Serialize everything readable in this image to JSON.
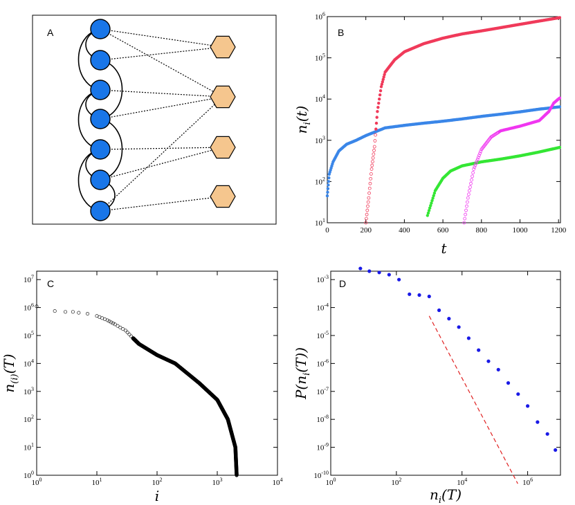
{
  "panels": {
    "A": {
      "label": "A",
      "colors": {
        "circle": "#1976e8",
        "hexagon": "#f5c68e"
      },
      "circles": 7,
      "hexagons": 4,
      "circle_links": [
        [
          0,
          1
        ],
        [
          0,
          2
        ],
        [
          1,
          3
        ],
        [
          2,
          3
        ],
        [
          2,
          4
        ],
        [
          3,
          5
        ],
        [
          4,
          6
        ],
        [
          4,
          5
        ],
        [
          5,
          6
        ]
      ],
      "bipartite_links": [
        [
          0,
          0
        ],
        [
          0,
          1
        ],
        [
          1,
          0
        ],
        [
          2,
          1
        ],
        [
          3,
          1
        ],
        [
          4,
          2
        ],
        [
          5,
          2
        ],
        [
          6,
          1
        ],
        [
          6,
          3
        ]
      ]
    },
    "B": {
      "label": "B",
      "xlabel": "t",
      "ylabel": "n_i(t)",
      "xticks": [
        "0",
        "200",
        "400",
        "600",
        "800",
        "1000",
        "1200"
      ],
      "ytick_exponents": [
        "1",
        "2",
        "3",
        "4",
        "5",
        "6"
      ]
    },
    "C": {
      "label": "C",
      "xlabel": "i",
      "ylabel": "n_(i)(T)",
      "xtick_exponents": [
        "0",
        "1",
        "2",
        "3",
        "4"
      ],
      "ytick_exponents": [
        "0",
        "1",
        "2",
        "3",
        "4",
        "5",
        "6",
        "7"
      ]
    },
    "D": {
      "label": "D",
      "xlabel": "n_i(T)",
      "ylabel": "P(n_i(T))",
      "xtick_exponents": [
        "0",
        "2",
        "4",
        "6"
      ],
      "ytick_exponents": [
        "-10",
        "-9",
        "-8",
        "-7",
        "-6",
        "-5",
        "-4",
        "-3"
      ]
    }
  },
  "chart_data": [
    {
      "type": "scatter",
      "panel": "B",
      "x_scale": "linear",
      "y_scale": "log",
      "xlim": [
        0,
        1210
      ],
      "ylim": [
        10,
        1000000
      ],
      "series": [
        {
          "color": "#3a86e8",
          "points": [
            [
              0,
              45
            ],
            [
              10,
              150
            ],
            [
              30,
              300
            ],
            [
              60,
              550
            ],
            [
              100,
              800
            ],
            [
              150,
              1000
            ],
            [
              200,
              1300
            ],
            [
              300,
              2000
            ],
            [
              400,
              2300
            ],
            [
              500,
              2600
            ],
            [
              600,
              2900
            ],
            [
              700,
              3300
            ],
            [
              800,
              3800
            ],
            [
              900,
              4300
            ],
            [
              1000,
              4900
            ],
            [
              1100,
              5700
            ],
            [
              1210,
              6500
            ]
          ]
        },
        {
          "color": "#f03a5a",
          "points": [
            [
              200,
              10
            ],
            [
              215,
              40
            ],
            [
              230,
              200
            ],
            [
              245,
              700
            ],
            [
              260,
              5000
            ],
            [
              280,
              20000
            ],
            [
              300,
              45000
            ],
            [
              350,
              90000
            ],
            [
              400,
              140000
            ],
            [
              500,
              220000
            ],
            [
              600,
              300000
            ],
            [
              700,
              380000
            ],
            [
              800,
              450000
            ],
            [
              900,
              540000
            ],
            [
              1000,
              650000
            ],
            [
              1100,
              780000
            ],
            [
              1210,
              950000
            ]
          ]
        },
        {
          "color": "#34e634",
          "points": [
            [
              520,
              15
            ],
            [
              560,
              60
            ],
            [
              600,
              120
            ],
            [
              640,
              180
            ],
            [
              700,
              240
            ],
            [
              800,
              300
            ],
            [
              900,
              350
            ],
            [
              1000,
              420
            ],
            [
              1100,
              520
            ],
            [
              1210,
              680
            ]
          ]
        },
        {
          "color": "#f037f0",
          "points": [
            [
              710,
              10
            ],
            [
              730,
              40
            ],
            [
              760,
              200
            ],
            [
              800,
              600
            ],
            [
              850,
              1200
            ],
            [
              900,
              1700
            ],
            [
              1000,
              2200
            ],
            [
              1100,
              3000
            ],
            [
              1150,
              5000
            ],
            [
              1175,
              8000
            ],
            [
              1210,
              11000
            ]
          ]
        }
      ]
    },
    {
      "type": "scatter",
      "panel": "C",
      "x_scale": "log",
      "y_scale": "log",
      "xlim": [
        1,
        10000
      ],
      "ylim": [
        1,
        20000000
      ],
      "points": [
        [
          1,
          1100000
        ],
        [
          2,
          750000
        ],
        [
          3,
          700000
        ],
        [
          4,
          700000
        ],
        [
          5,
          650000
        ],
        [
          7,
          600000
        ],
        [
          10,
          500000
        ],
        [
          15,
          350000
        ],
        [
          20,
          250000
        ],
        [
          30,
          150000
        ],
        [
          40,
          80000
        ],
        [
          50,
          50000
        ],
        [
          100,
          20000
        ],
        [
          200,
          10000
        ],
        [
          500,
          2000
        ],
        [
          1000,
          500
        ],
        [
          1500,
          100
        ],
        [
          2000,
          10
        ],
        [
          2100,
          1
        ]
      ]
    },
    {
      "type": "scatter",
      "panel": "D",
      "x_scale": "log",
      "y_scale": "log",
      "xlim": [
        1,
        10000000
      ],
      "ylim": [
        1e-10,
        0.002
      ],
      "points": [
        [
          8,
          0.0025
        ],
        [
          15,
          0.002
        ],
        [
          30,
          0.0018
        ],
        [
          60,
          0.0015
        ],
        [
          120,
          0.001
        ],
        [
          250,
          0.0003
        ],
        [
          500,
          0.00028
        ],
        [
          1000,
          0.00025
        ],
        [
          2000,
          8e-05
        ],
        [
          4000,
          4e-05
        ],
        [
          8000,
          2e-05
        ],
        [
          16000,
          8e-06
        ],
        [
          32000,
          3e-06
        ],
        [
          64000,
          1.2e-06
        ],
        [
          128000,
          6e-07
        ],
        [
          256000,
          2e-07
        ],
        [
          512000,
          8e-08
        ],
        [
          1000000,
          3e-08
        ],
        [
          2000000,
          8e-09
        ],
        [
          4000000,
          3e-09
        ],
        [
          7000000,
          8e-10
        ]
      ],
      "fit_line": {
        "color": "#e02020",
        "points": [
          [
            1000,
            5e-05
          ],
          [
            500000,
            5e-11
          ]
        ]
      }
    }
  ]
}
